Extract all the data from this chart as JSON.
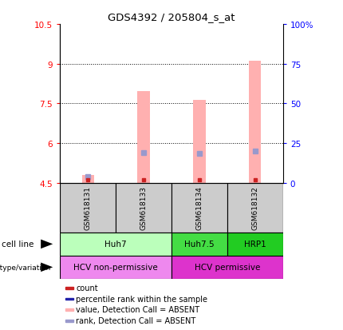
{
  "title": "GDS4392 / 205804_s_at",
  "samples": [
    "GSM618131",
    "GSM618133",
    "GSM618134",
    "GSM618132"
  ],
  "ylim_left": [
    4.5,
    10.5
  ],
  "ylim_right": [
    0,
    100
  ],
  "yticks_left": [
    4.5,
    6,
    7.5,
    9,
    10.5
  ],
  "yticks_right": [
    0,
    25,
    50,
    75,
    100
  ],
  "ytick_labels_left": [
    "4.5",
    "6",
    "7.5",
    "9",
    "10.5"
  ],
  "ytick_labels_right": [
    "0",
    "25",
    "50",
    "75",
    "100%"
  ],
  "bar_bottom": 4.5,
  "pink_bar_tops": [
    4.78,
    7.98,
    7.63,
    9.1
  ],
  "blue_marker_values": [
    4.72,
    5.65,
    5.6,
    5.7
  ],
  "red_marker_values": [
    4.62,
    4.62,
    4.62,
    4.62
  ],
  "pink_color": "#FFB0B0",
  "lightblue_color": "#9999CC",
  "red_color": "#CC2222",
  "blue_color": "#2222AA",
  "sample_bg_color": "#CCCCCC",
  "cell_spans": [
    [
      0,
      1,
      "Huh7",
      "#BBFFBB"
    ],
    [
      2,
      2,
      "Huh7.5",
      "#44DD44"
    ],
    [
      3,
      3,
      "HRP1",
      "#22CC22"
    ]
  ],
  "geno_spans": [
    [
      0,
      1,
      "HCV non-permissive",
      "#EE88EE"
    ],
    [
      2,
      3,
      "HCV permissive",
      "#DD33CC"
    ]
  ],
  "legend_items": [
    {
      "color": "#CC2222",
      "label": "count"
    },
    {
      "color": "#2222AA",
      "label": "percentile rank within the sample"
    },
    {
      "color": "#FFB0B0",
      "label": "value, Detection Call = ABSENT"
    },
    {
      "color": "#9999CC",
      "label": "rank, Detection Call = ABSENT"
    }
  ]
}
